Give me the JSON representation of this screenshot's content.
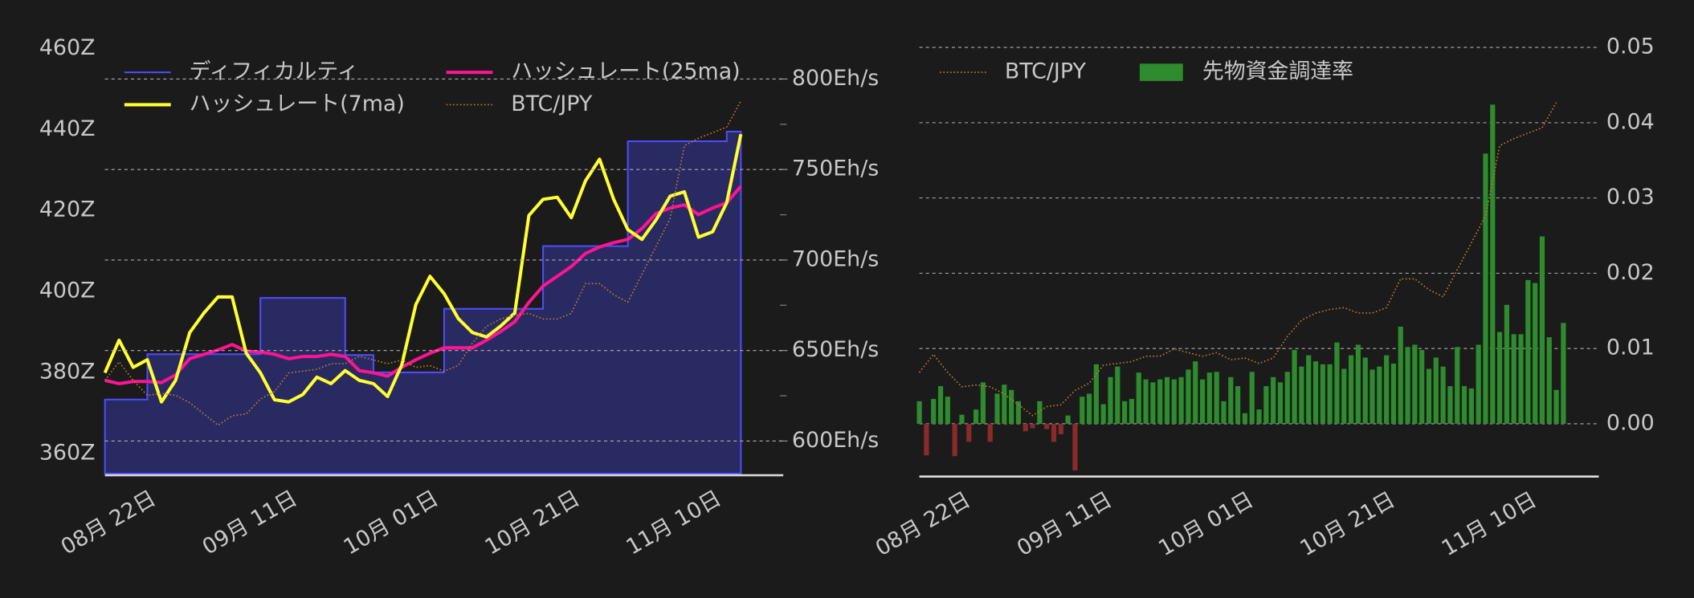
{
  "chart_data": [
    {
      "type": "line",
      "x": [
        "08-15",
        "08-17",
        "08-19",
        "08-21",
        "08-23",
        "08-25",
        "08-27",
        "08-29",
        "08-31",
        "09-02",
        "09-04",
        "09-06",
        "09-08",
        "09-10",
        "09-12",
        "09-14",
        "09-16",
        "09-18",
        "09-20",
        "09-22",
        "09-24",
        "09-26",
        "09-28",
        "09-30",
        "10-02",
        "10-04",
        "10-06",
        "10-08",
        "10-10",
        "10-12",
        "10-14",
        "10-16",
        "10-18",
        "10-20",
        "10-22",
        "10-24",
        "10-26",
        "10-28",
        "10-30",
        "11-01",
        "11-03",
        "11-05",
        "11-07",
        "11-09",
        "11-11",
        "11-13"
      ],
      "xlim": [
        "08-15",
        "11-19"
      ],
      "xticks": [
        {
          "value": "08-22",
          "label": "08月 22日"
        },
        {
          "value": "09-11",
          "label": "09月 11日"
        },
        {
          "value": "10-01",
          "label": "10月 01日"
        },
        {
          "value": "10-21",
          "label": "10月 21日"
        },
        {
          "value": "11-10",
          "label": "11月 10日"
        }
      ],
      "ylim": [
        355,
        465
      ],
      "yticks": [
        {
          "value": 360,
          "label": "360Z"
        },
        {
          "value": 380,
          "label": "380Z"
        },
        {
          "value": 400,
          "label": "400Z"
        },
        {
          "value": 420,
          "label": "420Z"
        },
        {
          "value": 440,
          "label": "440Z"
        },
        {
          "value": 460,
          "label": "460Z"
        }
      ],
      "y2lim": [
        582,
        828
      ],
      "y2ticks": [
        {
          "value": 600,
          "label": "600Eh/s"
        },
        {
          "value": 650,
          "label": "650Eh/s"
        },
        {
          "value": 700,
          "label": "700Eh/s"
        },
        {
          "value": 750,
          "label": "750Eh/s"
        },
        {
          "value": 800,
          "label": "800Eh/s"
        }
      ],
      "y2minorticks": [
        625,
        675,
        725,
        775
      ],
      "y3lim": [
        3460000,
        5850000
      ],
      "grid": "y2",
      "series": [
        {
          "name": "ディフィカルティ",
          "type": "area",
          "axis": "y",
          "color": "#4d4dff",
          "fill": "#2a2a62",
          "values": [
            373.3,
            373.3,
            373.3,
            384.5,
            384.5,
            384.5,
            384.5,
            384.5,
            384.5,
            384.5,
            384.5,
            398.4,
            398.4,
            398.4,
            398.4,
            398.4,
            398.4,
            384.3,
            384.3,
            380,
            380,
            380,
            380,
            380,
            395.7,
            395.7,
            395.7,
            395.7,
            395.7,
            395.7,
            395.7,
            411.2,
            411.2,
            411.2,
            411.2,
            411.2,
            411.2,
            437.1,
            437.1,
            437.1,
            437.1,
            437.1,
            437.1,
            437.1,
            439.5,
            439.5
          ]
        },
        {
          "name": "ハッシュレート(25ma)",
          "type": "line",
          "axis": "y2",
          "color": "#ff1493",
          "values": [
            633.5,
            631.7,
            632.9,
            632.9,
            632.3,
            636.5,
            645.5,
            647.9,
            650.3,
            653.3,
            649.7,
            649.1,
            647.9,
            645.5,
            646.7,
            646.7,
            647.9,
            646.7,
            638.9,
            637.7,
            635.9,
            640.7,
            644.9,
            648.5,
            651.5,
            651.5,
            651.5,
            655.7,
            660.5,
            665.9,
            676.6,
            685.6,
            691.0,
            696.4,
            703.6,
            707.2,
            709.6,
            711.4,
            717.4,
            725.7,
            728.7,
            730.5,
            725.1,
            728.7,
            731.7,
            740.7
          ]
        },
        {
          "name": "ハッシュレート(7ma)",
          "type": "line",
          "axis": "y2",
          "color": "#ffff33",
          "values": [
            637.7,
            655.7,
            640.7,
            644.9,
            621.6,
            633.5,
            659.9,
            670.7,
            679.6,
            679.6,
            648.5,
            637.7,
            622.8,
            621.6,
            625.7,
            635.3,
            631.7,
            638.9,
            633.5,
            631.7,
            624.6,
            641.9,
            675.4,
            691.0,
            681.4,
            667.7,
            659.9,
            657.5,
            663.5,
            670.7,
            724.6,
            733.5,
            734.7,
            723.4,
            743.7,
            755.7,
            733.5,
            716.8,
            711.4,
            722.2,
            735.3,
            737.7,
            712.6,
            715.6,
            731.7,
            769.5
          ]
        },
        {
          "name": "BTC/JPY",
          "type": "line",
          "axis": "y3",
          "color": "#c0802a",
          "style": "dotted",
          "values": [
            3960000,
            4060000,
            3960000,
            3880000,
            3890000,
            3880000,
            3840000,
            3780000,
            3720000,
            3770000,
            3780000,
            3860000,
            3900000,
            4000000,
            4010000,
            4020000,
            4050000,
            4050000,
            4090000,
            4070000,
            4050000,
            4070000,
            4030000,
            4040000,
            4010000,
            4040000,
            4160000,
            4250000,
            4290000,
            4310000,
            4320000,
            4290000,
            4290000,
            4320000,
            4480000,
            4480000,
            4420000,
            4380000,
            4530000,
            4680000,
            4830000,
            5220000,
            5260000,
            5290000,
            5320000,
            5460000
          ]
        }
      ]
    },
    {
      "type": "bar",
      "x": [
        "08-15",
        "08-16",
        "08-17",
        "08-18",
        "08-19",
        "08-20",
        "08-21",
        "08-22",
        "08-23",
        "08-24",
        "08-25",
        "08-26",
        "08-27",
        "08-28",
        "08-29",
        "08-30",
        "08-31",
        "09-01",
        "09-02",
        "09-03",
        "09-04",
        "09-05",
        "09-06",
        "09-07",
        "09-08",
        "09-09",
        "09-10",
        "09-11",
        "09-12",
        "09-13",
        "09-14",
        "09-15",
        "09-16",
        "09-17",
        "09-18",
        "09-19",
        "09-20",
        "09-21",
        "09-22",
        "09-23",
        "09-24",
        "09-25",
        "09-26",
        "09-27",
        "09-28",
        "09-29",
        "09-30",
        "10-01",
        "10-02",
        "10-03",
        "10-04",
        "10-05",
        "10-06",
        "10-07",
        "10-08",
        "10-09",
        "10-10",
        "10-11",
        "10-12",
        "10-13",
        "10-14",
        "10-15",
        "10-16",
        "10-17",
        "10-18",
        "10-19",
        "10-20",
        "10-21",
        "10-22",
        "10-23",
        "10-24",
        "10-25",
        "10-26",
        "10-27",
        "10-28",
        "10-29",
        "10-30",
        "10-31",
        "11-01",
        "11-02",
        "11-03",
        "11-04",
        "11-05",
        "11-06",
        "11-07",
        "11-08",
        "11-09",
        "11-10",
        "11-11",
        "11-12",
        "11-13",
        "11-14"
      ],
      "xlim": [
        "08-15",
        "11-19"
      ],
      "xticks": [
        {
          "value": "08-22",
          "label": "08月 22日"
        },
        {
          "value": "09-11",
          "label": "09月 11日"
        },
        {
          "value": "10-01",
          "label": "10月 01日"
        },
        {
          "value": "10-21",
          "label": "10月 21日"
        },
        {
          "value": "11-10",
          "label": "11月 10日"
        }
      ],
      "ylim": [
        -0.0068,
        0.052
      ],
      "yticks": [
        {
          "value": 0,
          "label": "0.00"
        },
        0.01,
        0.02,
        0.03,
        0.04,
        0.05
      ],
      "y3lim": [
        3390000,
        5850000
      ],
      "grid": "y",
      "series": [
        {
          "name": "BTC/JPY",
          "type": "line",
          "axis": "y3",
          "color": "#c0802a",
          "style": "dotted",
          "x": [
            "08-15",
            "08-17",
            "08-19",
            "08-21",
            "08-23",
            "08-25",
            "08-27",
            "08-29",
            "08-31",
            "09-02",
            "09-04",
            "09-06",
            "09-08",
            "09-10",
            "09-12",
            "09-14",
            "09-16",
            "09-18",
            "09-20",
            "09-22",
            "09-24",
            "09-26",
            "09-28",
            "09-30",
            "10-02",
            "10-04",
            "10-06",
            "10-08",
            "10-10",
            "10-12",
            "10-14",
            "10-16",
            "10-18",
            "10-20",
            "10-22",
            "10-24",
            "10-26",
            "10-28",
            "10-30",
            "11-01",
            "11-03",
            "11-05",
            "11-07",
            "11-09",
            "11-11",
            "11-13"
          ],
          "values": [
            3960000,
            4060000,
            3960000,
            3880000,
            3890000,
            3880000,
            3840000,
            3780000,
            3720000,
            3770000,
            3780000,
            3860000,
            3900000,
            4000000,
            4010000,
            4020000,
            4050000,
            4050000,
            4090000,
            4070000,
            4050000,
            4070000,
            4030000,
            4040000,
            4010000,
            4040000,
            4160000,
            4250000,
            4290000,
            4310000,
            4320000,
            4290000,
            4290000,
            4320000,
            4480000,
            4480000,
            4420000,
            4380000,
            4530000,
            4680000,
            4830000,
            5220000,
            5260000,
            5290000,
            5320000,
            5460000
          ]
        },
        {
          "name": "先物資金調達率",
          "type": "bar",
          "axis": "y",
          "color": "#2e8b2e",
          "negative_color": "#8b2a2a",
          "values": [
            0.003,
            -0.0042,
            0.0033,
            0.005,
            0.0036,
            -0.0043,
            0.0012,
            -0.0024,
            0.0019,
            0.0055,
            -0.0024,
            0.004,
            0.0052,
            0.0045,
            0.003,
            -0.001,
            -0.0006,
            0.003,
            -0.0007,
            -0.0024,
            -0.0014,
            0.0011,
            -0.0062,
            0.0036,
            0.004,
            0.0079,
            0.0026,
            0.0062,
            0.0076,
            0.003,
            0.0033,
            0.0068,
            0.0059,
            0.0055,
            0.0059,
            0.0062,
            0.0059,
            0.0062,
            0.0072,
            0.0083,
            0.0059,
            0.0068,
            0.0069,
            0.003,
            0.0062,
            0.005,
            0.0014,
            0.0069,
            0.0019,
            0.005,
            0.0062,
            0.0055,
            0.0069,
            0.0098,
            0.0076,
            0.0091,
            0.0083,
            0.0079,
            0.0079,
            0.0108,
            0.0073,
            0.0091,
            0.0105,
            0.0088,
            0.0072,
            0.0076,
            0.0091,
            0.008,
            0.0129,
            0.0102,
            0.0105,
            0.0098,
            0.0073,
            0.0088,
            0.0076,
            0.005,
            0.0102,
            0.005,
            0.0047,
            0.0105,
            0.0359,
            0.0424,
            0.0122,
            0.0158,
            0.0119,
            0.0119,
            0.0191,
            0.0187,
            0.0249,
            0.0115,
            0.0045,
            0.0134
          ]
        }
      ]
    }
  ]
}
